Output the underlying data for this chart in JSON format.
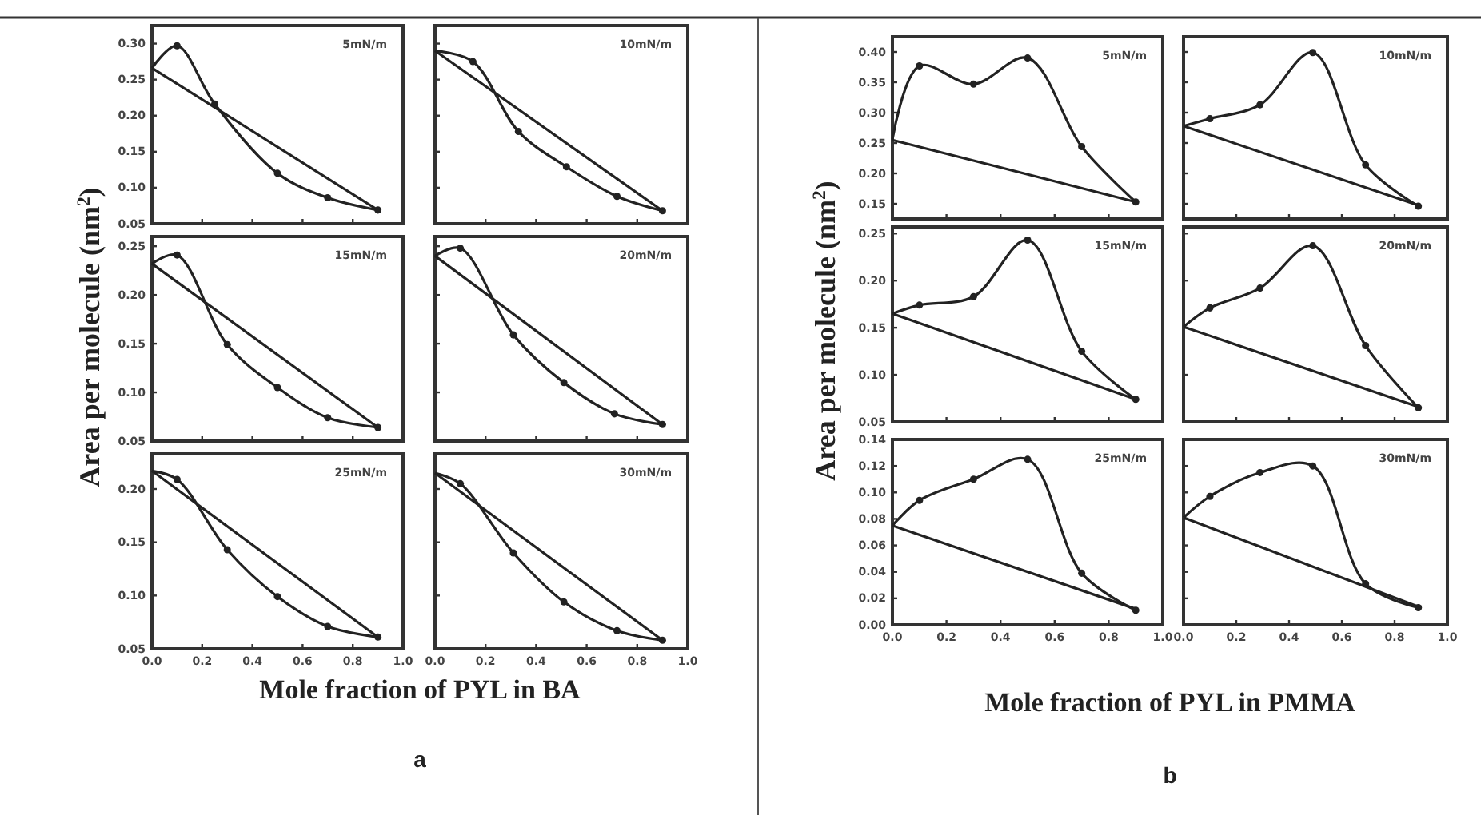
{
  "chart_data": [
    {
      "type": "line",
      "title": "5mN/m",
      "xlim": [
        0,
        1
      ],
      "ylim": [
        0.05,
        0.325
      ],
      "xticks": [
        0,
        0.2,
        0.4,
        0.6,
        0.8,
        1
      ],
      "yticks": [
        {
          "value": 0.05,
          "label": "0.05"
        },
        {
          "value": 0.1,
          "label": "0.10"
        },
        {
          "value": 0.15,
          "label": "0.15"
        },
        {
          "value": 0.2,
          "label": "0.20"
        },
        {
          "value": 0.25,
          "label": "0.25"
        },
        {
          "value": 0.3,
          "label": "0.30"
        }
      ],
      "tick_labels": "y",
      "series": [
        {
          "type": "line",
          "color": "#222222",
          "x": [
            0,
            0.9
          ],
          "values": [
            0.266,
            0.069
          ]
        },
        {
          "type": "line",
          "color": "#222222",
          "marker": "circle",
          "x": [
            0,
            0.1,
            0.25,
            0.5,
            0.7,
            0.9
          ],
          "values": [
            0.266,
            0.297,
            0.216,
            0.12,
            0.086,
            0.069
          ]
        }
      ]
    },
    {
      "type": "line",
      "title": "10mN/m",
      "xlim": [
        0,
        1
      ],
      "ylim": [
        0.05,
        0.325
      ],
      "xticks": [
        0,
        0.2,
        0.4,
        0.6,
        0.8,
        1
      ],
      "yticks": [
        0.05,
        0.1,
        0.15,
        0.2,
        0.25,
        0.3
      ],
      "tick_labels": false,
      "series": [
        {
          "type": "line",
          "color": "#222222",
          "x": [
            0,
            0.9
          ],
          "values": [
            0.29,
            0.068
          ]
        },
        {
          "type": "line",
          "color": "#222222",
          "marker": "circle",
          "x": [
            0,
            0.15,
            0.33,
            0.52,
            0.72,
            0.9
          ],
          "values": [
            0.29,
            0.275,
            0.178,
            0.129,
            0.088,
            0.068
          ]
        }
      ]
    },
    {
      "type": "line",
      "title": "15mN/m",
      "ylabel": "Area per molecule (nm$^{2}$)",
      "xlim": [
        0,
        1
      ],
      "ylim": [
        0.05,
        0.26
      ],
      "xticks": [
        0,
        0.2,
        0.4,
        0.6,
        0.8,
        1
      ],
      "yticks": [
        {
          "value": 0.05,
          "label": "0.05"
        },
        {
          "value": 0.1,
          "label": "0.10"
        },
        {
          "value": 0.15,
          "label": "0.15"
        },
        {
          "value": 0.2,
          "label": "0.20"
        },
        {
          "value": 0.25,
          "label": "0.25"
        }
      ],
      "tick_labels": "y",
      "series": [
        {
          "type": "line",
          "color": "#222222",
          "x": [
            0,
            0.9
          ],
          "values": [
            0.232,
            0.064
          ]
        },
        {
          "type": "line",
          "color": "#222222",
          "marker": "circle",
          "x": [
            0,
            0.1,
            0.3,
            0.5,
            0.7,
            0.9
          ],
          "values": [
            0.232,
            0.241,
            0.149,
            0.105,
            0.074,
            0.064
          ]
        }
      ]
    },
    {
      "type": "line",
      "title": "20mN/m",
      "xlim": [
        0,
        1
      ],
      "ylim": [
        0.05,
        0.26
      ],
      "xticks": [
        0,
        0.2,
        0.4,
        0.6,
        0.8,
        1
      ],
      "yticks": [
        0.05,
        0.1,
        0.15,
        0.2,
        0.25
      ],
      "tick_labels": false,
      "series": [
        {
          "type": "line",
          "color": "#222222",
          "x": [
            0,
            0.9
          ],
          "values": [
            0.24,
            0.067
          ]
        },
        {
          "type": "line",
          "color": "#222222",
          "marker": "circle",
          "x": [
            0,
            0.1,
            0.31,
            0.51,
            0.71,
            0.9
          ],
          "values": [
            0.24,
            0.248,
            0.159,
            0.11,
            0.078,
            0.067
          ]
        }
      ]
    },
    {
      "type": "line",
      "title": "25mN/m",
      "xlabel": "Mole fraction of PYL in BA",
      "annotations": [
        "a"
      ],
      "xlim": [
        0,
        1
      ],
      "ylim": [
        0.05,
        0.233
      ],
      "xticks": [
        {
          "value": 0,
          "label": "0.0"
        },
        {
          "value": 0.2,
          "label": "0.2"
        },
        {
          "value": 0.4,
          "label": "0.4"
        },
        {
          "value": 0.6,
          "label": "0.6"
        },
        {
          "value": 0.8,
          "label": "0.8"
        },
        {
          "value": 1,
          "label": "1.0"
        }
      ],
      "yticks": [
        {
          "value": 0.05,
          "label": "0.05"
        },
        {
          "value": 0.1,
          "label": "0.10"
        },
        {
          "value": 0.15,
          "label": "0.15"
        },
        {
          "value": 0.2,
          "label": "0.20"
        }
      ],
      "series": [
        {
          "type": "line",
          "color": "#222222",
          "x": [
            0,
            0.9
          ],
          "values": [
            0.217,
            0.061
          ]
        },
        {
          "type": "line",
          "color": "#222222",
          "marker": "circle",
          "x": [
            0,
            0.1,
            0.3,
            0.5,
            0.7,
            0.9
          ],
          "values": [
            0.217,
            0.209,
            0.143,
            0.099,
            0.071,
            0.061
          ]
        }
      ]
    },
    {
      "type": "line",
      "title": "30mN/m",
      "xlim": [
        0,
        1
      ],
      "ylim": [
        0.05,
        0.233
      ],
      "xticks": [
        {
          "value": 0,
          "label": "0.0"
        },
        {
          "value": 0.2,
          "label": "0.2"
        },
        {
          "value": 0.4,
          "label": "0.4"
        },
        {
          "value": 0.6,
          "label": "0.6"
        },
        {
          "value": 0.8,
          "label": "0.8"
        },
        {
          "value": 1,
          "label": "1.0"
        }
      ],
      "yticks": [
        0.05,
        0.1,
        0.15,
        0.2
      ],
      "tick_labels": "x",
      "series": [
        {
          "type": "line",
          "color": "#222222",
          "x": [
            0,
            0.9
          ],
          "values": [
            0.215,
            0.058
          ]
        },
        {
          "type": "line",
          "color": "#222222",
          "marker": "circle",
          "x": [
            0,
            0.1,
            0.31,
            0.51,
            0.72,
            0.9
          ],
          "values": [
            0.215,
            0.205,
            0.14,
            0.094,
            0.067,
            0.058
          ]
        }
      ]
    },
    {
      "type": "line",
      "title": "5mN/m",
      "xlim": [
        0,
        1
      ],
      "ylim": [
        0.125,
        0.425
      ],
      "xticks": [
        0,
        0.2,
        0.4,
        0.6,
        0.8,
        1
      ],
      "yticks": [
        {
          "value": 0.15,
          "label": "0.15"
        },
        {
          "value": 0.2,
          "label": "0.20"
        },
        {
          "value": 0.25,
          "label": "0.25"
        },
        {
          "value": 0.3,
          "label": "0.30"
        },
        {
          "value": 0.35,
          "label": "0.35"
        },
        {
          "value": 0.4,
          "label": "0.40"
        }
      ],
      "tick_labels": "y",
      "series": [
        {
          "type": "line",
          "color": "#222222",
          "x": [
            0,
            0.9
          ],
          "values": [
            0.255,
            0.153
          ]
        },
        {
          "type": "line",
          "color": "#222222",
          "marker": "circle",
          "x": [
            0,
            0.1,
            0.3,
            0.5,
            0.7,
            0.9
          ],
          "values": [
            0.256,
            0.377,
            0.347,
            0.39,
            0.244,
            0.153
          ]
        }
      ]
    },
    {
      "type": "line",
      "title": "10mN/m",
      "xlim": [
        0,
        1
      ],
      "ylim": [
        0.125,
        0.425
      ],
      "xticks": [
        0,
        0.2,
        0.4,
        0.6,
        0.8,
        1
      ],
      "yticks": [
        0.15,
        0.2,
        0.25,
        0.3,
        0.35,
        0.4
      ],
      "tick_labels": false,
      "series": [
        {
          "type": "line",
          "color": "#222222",
          "x": [
            0,
            0.9
          ],
          "values": [
            0.278,
            0.146
          ]
        },
        {
          "type": "line",
          "color": "#222222",
          "marker": "circle",
          "x": [
            0,
            0.1,
            0.29,
            0.49,
            0.69,
            0.89
          ],
          "values": [
            0.278,
            0.29,
            0.313,
            0.399,
            0.214,
            0.146
          ]
        }
      ]
    },
    {
      "type": "line",
      "title": "15mN/m",
      "ylabel": "Area per molecule (nm$^{2}$)",
      "xlim": [
        0,
        1
      ],
      "ylim": [
        0.05,
        0.257
      ],
      "xticks": [
        0,
        0.2,
        0.4,
        0.6,
        0.8,
        1
      ],
      "yticks": [
        {
          "value": 0.05,
          "label": "0.05"
        },
        {
          "value": 0.1,
          "label": "0.10"
        },
        {
          "value": 0.15,
          "label": "0.15"
        },
        {
          "value": 0.2,
          "label": "0.20"
        },
        {
          "value": 0.25,
          "label": "0.25"
        }
      ],
      "tick_labels": "y",
      "series": [
        {
          "type": "line",
          "color": "#222222",
          "x": [
            0,
            0.9
          ],
          "values": [
            0.165,
            0.074
          ]
        },
        {
          "type": "line",
          "color": "#222222",
          "marker": "circle",
          "x": [
            0,
            0.1,
            0.3,
            0.5,
            0.7,
            0.9
          ],
          "values": [
            0.165,
            0.174,
            0.183,
            0.243,
            0.125,
            0.074
          ]
        }
      ]
    },
    {
      "type": "line",
      "title": "20mN/m",
      "xlim": [
        0,
        1
      ],
      "ylim": [
        0.05,
        0.257
      ],
      "xticks": [
        0,
        0.2,
        0.4,
        0.6,
        0.8,
        1
      ],
      "yticks": [
        0.05,
        0.1,
        0.15,
        0.2,
        0.25
      ],
      "tick_labels": false,
      "series": [
        {
          "type": "line",
          "color": "#222222",
          "x": [
            0,
            0.9
          ],
          "values": [
            0.151,
            0.065
          ]
        },
        {
          "type": "line",
          "color": "#222222",
          "marker": "circle",
          "x": [
            0,
            0.1,
            0.29,
            0.49,
            0.69,
            0.89
          ],
          "values": [
            0.151,
            0.171,
            0.192,
            0.237,
            0.131,
            0.065
          ]
        }
      ]
    },
    {
      "type": "line",
      "title": "25mN/m",
      "xlabel": "Mole fraction of PYL in PMMA",
      "annotations": [
        "b"
      ],
      "xlim": [
        0,
        1
      ],
      "ylim": [
        0,
        0.14
      ],
      "xticks": [
        {
          "value": 0,
          "label": "0.0"
        },
        {
          "value": 0.2,
          "label": "0.2"
        },
        {
          "value": 0.4,
          "label": "0.4"
        },
        {
          "value": 0.6,
          "label": "0.6"
        },
        {
          "value": 0.8,
          "label": "0.8"
        },
        {
          "value": 1,
          "label": "1.0"
        }
      ],
      "yticks": [
        {
          "value": 0,
          "label": "0.00"
        },
        {
          "value": 0.02,
          "label": "0.02"
        },
        {
          "value": 0.04,
          "label": "0.04"
        },
        {
          "value": 0.06,
          "label": "0.06"
        },
        {
          "value": 0.08,
          "label": "0.08"
        },
        {
          "value": 0.1,
          "label": "0.10"
        },
        {
          "value": 0.12,
          "label": "0.12"
        },
        {
          "value": 0.14,
          "label": "0.14"
        }
      ],
      "series": [
        {
          "type": "line",
          "color": "#222222",
          "x": [
            0,
            0.9
          ],
          "values": [
            0.075,
            0.012
          ]
        },
        {
          "type": "line",
          "color": "#222222",
          "marker": "circle",
          "x": [
            0,
            0.1,
            0.3,
            0.5,
            0.7,
            0.9
          ],
          "values": [
            0.075,
            0.094,
            0.11,
            0.125,
            0.039,
            0.011
          ]
        }
      ]
    },
    {
      "type": "line",
      "title": "30mN/m",
      "xlim": [
        0,
        1
      ],
      "ylim": [
        0,
        0.14
      ],
      "xticks": [
        {
          "value": 0,
          "label": "0.0"
        },
        {
          "value": 0.2,
          "label": "0.2"
        },
        {
          "value": 0.4,
          "label": "0.4"
        },
        {
          "value": 0.6,
          "label": "0.6"
        },
        {
          "value": 0.8,
          "label": "0.8"
        },
        {
          "value": 1,
          "label": "1.0"
        }
      ],
      "yticks": [
        0,
        0.02,
        0.04,
        0.06,
        0.08,
        0.1,
        0.12,
        0.14
      ],
      "tick_labels": "x",
      "series": [
        {
          "type": "line",
          "color": "#222222",
          "x": [
            0,
            0.9
          ],
          "values": [
            0.081,
            0.013
          ]
        },
        {
          "type": "line",
          "color": "#222222",
          "marker": "circle",
          "x": [
            0,
            0.1,
            0.29,
            0.49,
            0.69,
            0.89
          ],
          "values": [
            0.081,
            0.097,
            0.115,
            0.12,
            0.031,
            0.013
          ]
        }
      ]
    }
  ]
}
